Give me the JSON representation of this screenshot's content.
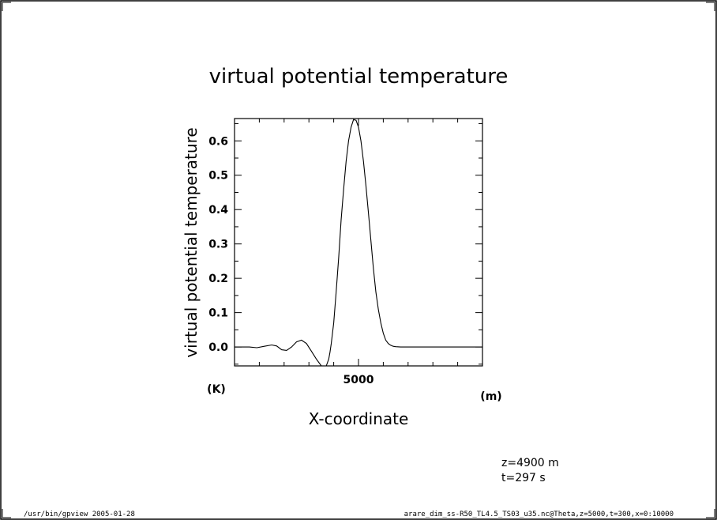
{
  "chart_data": {
    "type": "line",
    "title": "virtual potential temperature",
    "xlabel": "X-coordinate",
    "ylabel": "virtual potential temperature",
    "x_unit": "(m)",
    "y_unit": "(K)",
    "xlim": [
      0,
      10000
    ],
    "ylim": [
      -0.055,
      0.665
    ],
    "x_ticks": [
      5000
    ],
    "x_tick_labels": [
      "5000"
    ],
    "y_ticks": [
      0.0,
      0.1,
      0.2,
      0.3,
      0.4,
      0.5,
      0.6
    ],
    "y_tick_labels": [
      "0.0",
      "0.1",
      "0.2",
      "0.3",
      "0.4",
      "0.5",
      "0.6"
    ],
    "grid": false,
    "series": [
      {
        "x": [
          0,
          300,
          600,
          900,
          1200,
          1500,
          1700,
          1900,
          2100,
          2300,
          2500,
          2700,
          2900,
          3100,
          3300,
          3500,
          3600,
          3700,
          3800,
          3850,
          3900,
          4000,
          4100,
          4200,
          4300,
          4400,
          4500,
          4600,
          4700,
          4800,
          4900,
          5000,
          5100,
          5200,
          5300,
          5400,
          5500,
          5600,
          5700,
          5800,
          5900,
          6000,
          6100,
          6200,
          6300,
          6400,
          6500,
          6700,
          6900,
          7200,
          7500,
          8000,
          8500,
          9000,
          9500,
          10000
        ],
        "y": [
          0.0,
          0.0,
          0.0,
          -0.002,
          0.002,
          0.006,
          0.003,
          -0.008,
          -0.01,
          0.0,
          0.015,
          0.02,
          0.01,
          -0.012,
          -0.035,
          -0.055,
          -0.062,
          -0.055,
          -0.035,
          -0.015,
          0.01,
          0.07,
          0.16,
          0.26,
          0.37,
          0.46,
          0.54,
          0.6,
          0.64,
          0.662,
          0.66,
          0.64,
          0.6,
          0.54,
          0.47,
          0.39,
          0.31,
          0.23,
          0.16,
          0.11,
          0.07,
          0.04,
          0.02,
          0.01,
          0.005,
          0.002,
          0.001,
          0.0,
          0.0,
          0.0,
          0.0,
          0.0,
          0.0,
          0.0,
          0.0,
          0.0
        ]
      }
    ],
    "annotations": [
      "z=4900 m",
      "t=297 s"
    ]
  },
  "footer": {
    "left": "/usr/bin/gpview  2005-01-28",
    "right": "arare_dim_ss-R50_TL4.5_TS03_u35.nc@Theta,z=5000,t=300,x=0:10000"
  }
}
